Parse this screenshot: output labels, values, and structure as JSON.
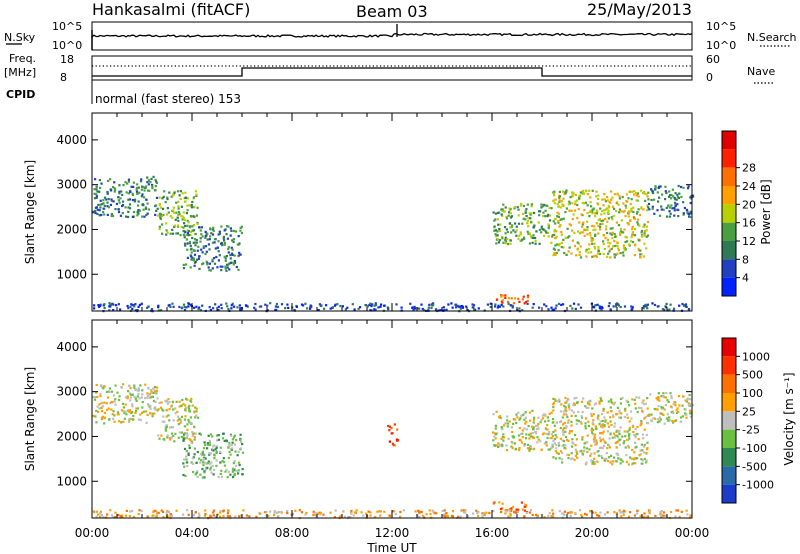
{
  "header": {
    "station": "Hankasalmi (fitACF)",
    "beam": "Beam 03",
    "date": "25/May/2013"
  },
  "noise_panel": {
    "left_label": "N.Sky",
    "right_label": "N.Search",
    "left_ticks": [
      "10^5",
      "10^0"
    ],
    "right_ticks": [
      "10^5",
      "10^0"
    ]
  },
  "freq_panel": {
    "left_label_1": "Freq.",
    "left_label_2": "[MHz]",
    "right_label": "Nave",
    "left_ticks": [
      "18",
      "8"
    ],
    "right_ticks": [
      "60",
      "0"
    ]
  },
  "cpid": {
    "label": "CPID",
    "program": "normal (fast stereo) 153"
  },
  "chart_data": [
    {
      "type": "heatmap",
      "panel": "power",
      "ylabel": "Slant Range [km]",
      "xlabel": "Time UT",
      "x_ticks": [
        "00:00",
        "04:00",
        "08:00",
        "12:00",
        "16:00",
        "20:00",
        "00:00"
      ],
      "xlim_hours": [
        0,
        24
      ],
      "y_ticks": [
        1000,
        2000,
        3000,
        4000
      ],
      "ylim": [
        180,
        4600
      ],
      "colorbar_label": "Power [dB]",
      "colorbar_ticks": [
        "4",
        "8",
        "12",
        "16",
        "20",
        "24",
        "28"
      ],
      "colorbar_colors": [
        "#0022ff",
        "#2040c0",
        "#2e7a55",
        "#4aa040",
        "#b8d000",
        "#ffa000",
        "#ff7000",
        "#ff2000",
        "#e00000"
      ],
      "bands": [
        {
          "t0": 0.0,
          "t1": 2.6,
          "r0": 2300,
          "r1": 3200,
          "level": 2
        },
        {
          "t0": 2.6,
          "t1": 4.2,
          "r0": 1900,
          "r1": 2900,
          "level": 3
        },
        {
          "t0": 3.6,
          "t1": 6.0,
          "r0": 1100,
          "r1": 2100,
          "level": 2
        },
        {
          "t0": 16.0,
          "t1": 18.4,
          "r0": 1700,
          "r1": 2600,
          "level": 3
        },
        {
          "t0": 18.4,
          "t1": 22.2,
          "r0": 1400,
          "r1": 2900,
          "level": 4
        },
        {
          "t0": 22.2,
          "t1": 24.0,
          "r0": 2300,
          "r1": 3000,
          "level": 2
        },
        {
          "t0": 16.0,
          "t1": 17.4,
          "r0": 330,
          "r1": 560,
          "level": 6
        },
        {
          "t0": 0.0,
          "t1": 24.0,
          "r0": 200,
          "r1": 380,
          "level": 1
        }
      ]
    },
    {
      "type": "heatmap",
      "panel": "velocity",
      "ylabel": "Slant Range [km]",
      "xlabel": "Time UT",
      "x_ticks": [
        "00:00",
        "04:00",
        "08:00",
        "12:00",
        "16:00",
        "20:00",
        "00:00"
      ],
      "xlim_hours": [
        0,
        24
      ],
      "y_ticks": [
        1000,
        2000,
        3000,
        4000
      ],
      "ylim": [
        180,
        4600
      ],
      "colorbar_label": "Velocity [m s⁻¹]",
      "colorbar_ticks": [
        "1000",
        "500",
        "100",
        "25",
        "-25",
        "-100",
        "-500",
        "-1000"
      ],
      "colorbar_colors": [
        "#1a3cc8",
        "#2a6aa8",
        "#2e8a50",
        "#6ac040",
        "#bebebe",
        "#ffa000",
        "#ff7000",
        "#ff3000",
        "#e80000"
      ],
      "bands": [
        {
          "t0": 0.0,
          "t1": 2.6,
          "r0": 2300,
          "r1": 3200,
          "level": 4
        },
        {
          "t0": 2.6,
          "t1": 4.2,
          "r0": 1900,
          "r1": 2900,
          "level": 4
        },
        {
          "t0": 3.6,
          "t1": 6.0,
          "r0": 1100,
          "r1": 2100,
          "level": 3
        },
        {
          "t0": 16.0,
          "t1": 18.4,
          "r0": 1700,
          "r1": 2600,
          "level": 4
        },
        {
          "t0": 18.4,
          "t1": 22.2,
          "r0": 1400,
          "r1": 2900,
          "level": 4
        },
        {
          "t0": 22.2,
          "t1": 24.0,
          "r0": 2300,
          "r1": 3000,
          "level": 4
        },
        {
          "t0": 16.0,
          "t1": 17.4,
          "r0": 330,
          "r1": 560,
          "level": 6
        },
        {
          "t0": 11.8,
          "t1": 12.2,
          "r0": 1800,
          "r1": 2300,
          "level": 7
        },
        {
          "t0": 0.0,
          "t1": 24.0,
          "r0": 200,
          "r1": 380,
          "level": 5
        }
      ]
    }
  ]
}
